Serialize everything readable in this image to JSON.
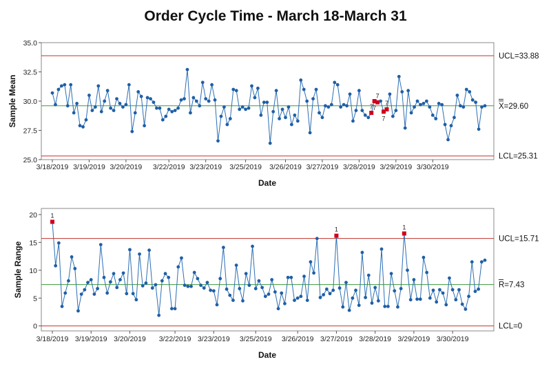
{
  "colors": {
    "line": "#2a6db4",
    "point": "#1f5fa6",
    "flag_point": "#d0021b",
    "limit": "#c0302a",
    "center": "#3a9a3a",
    "frame": "#888888"
  },
  "chart_data": [
    {
      "type": "line",
      "title": "Order Cycle Time - March 18-March 31",
      "xlabel": "Date",
      "ylabel": "Sample Mean",
      "ylim": [
        25.0,
        35.0
      ],
      "yticks": [
        "25.0",
        "27.5",
        "30.0",
        "32.5",
        "35.0"
      ],
      "ytick_values": [
        25.0,
        27.5,
        30.0,
        32.5,
        35.0
      ],
      "xtick_labels": [
        "3/18/2019",
        "3/19/2019",
        "3/20/2019",
        "3/22/2019",
        "3/23/2019",
        "3/25/2019",
        "3/26/2019",
        "3/27/2019",
        "3/28/2019",
        "3/29/2019",
        "3/30/2019"
      ],
      "xtick_index": [
        0,
        12,
        24,
        38,
        50,
        63,
        76,
        88,
        100,
        112,
        124
      ],
      "limits": [
        {
          "name": "UCL",
          "label": "UCL=33.88",
          "value": 33.88
        },
        {
          "name": "CL",
          "label": "X=29.60",
          "value": 29.6
        },
        {
          "name": "LCL",
          "label": "LCL=25.31",
          "value": 25.31
        }
      ],
      "values": [
        30.7,
        29.7,
        31.0,
        31.3,
        31.4,
        29.6,
        31.4,
        29.0,
        29.8,
        27.9,
        27.8,
        28.4,
        30.5,
        29.2,
        29.5,
        31.3,
        29.1,
        30.0,
        30.9,
        29.4,
        29.2,
        30.2,
        29.8,
        29.5,
        29.7,
        31.4,
        27.4,
        29.0,
        30.8,
        30.4,
        27.9,
        30.3,
        30.2,
        29.9,
        29.4,
        29.4,
        28.4,
        28.7,
        29.3,
        29.1,
        29.2,
        29.4,
        30.1,
        30.2,
        32.7,
        29.0,
        30.3,
        30.0,
        29.6,
        31.6,
        30.2,
        30.0,
        31.4,
        30.1,
        26.6,
        28.7,
        29.5,
        28.0,
        28.5,
        31.0,
        30.9,
        29.3,
        29.5,
        29.3,
        29.4,
        31.3,
        30.3,
        31.1,
        28.8,
        29.9,
        29.9,
        26.4,
        29.1,
        30.9,
        28.5,
        29.3,
        28.6,
        29.5,
        28.0,
        28.8,
        28.3,
        31.8,
        31.0,
        30.0,
        27.3,
        30.2,
        31.0,
        29.0,
        28.6,
        29.6,
        29.5,
        29.7,
        31.6,
        31.4,
        29.5,
        29.7,
        29.6,
        30.6,
        28.3,
        29.2,
        30.9,
        29.2,
        28.8,
        28.6,
        29.0,
        30.0,
        29.9,
        30.0,
        29.1,
        29.3,
        30.6,
        28.7,
        29.2,
        32.1,
        30.8,
        27.7,
        30.9,
        29.0,
        29.5,
        30.0,
        29.7,
        29.8,
        30.0,
        29.5,
        28.8,
        28.5,
        29.8,
        29.7,
        28.0,
        26.7,
        27.9,
        28.6,
        30.5,
        29.6,
        29.5,
        31.0,
        30.8,
        30.1,
        29.9,
        27.6,
        29.5,
        29.6
      ],
      "flagged": [
        {
          "index": 104,
          "label": "7"
        },
        {
          "index": 105,
          "label": "7"
        },
        {
          "index": 106,
          "label": "7"
        },
        {
          "index": 108,
          "label": "7"
        },
        {
          "index": 109,
          "label": "7"
        }
      ]
    },
    {
      "type": "line",
      "xlabel": "Date",
      "ylabel": "Sample Range",
      "ylim": [
        0,
        20
      ],
      "yticks": [
        "0",
        "5",
        "10",
        "15",
        "20"
      ],
      "ytick_values": [
        0,
        5,
        10,
        15,
        20
      ],
      "xtick_labels": [
        "3/18/2019",
        "3/19/2019",
        "3/20/2019",
        "3/22/2019",
        "3/23/2019",
        "3/25/2019",
        "3/26/2019",
        "3/27/2019",
        "3/28/2019",
        "3/29/2019",
        "3/30/2019"
      ],
      "xtick_index": [
        0,
        12,
        24,
        38,
        50,
        63,
        76,
        88,
        100,
        112,
        124
      ],
      "limits": [
        {
          "name": "UCL",
          "label": "UCL=15.71",
          "value": 15.71
        },
        {
          "name": "CL",
          "label": "R=7.43",
          "value": 7.43
        },
        {
          "name": "LCL",
          "label": "LCL=0",
          "value": 0
        }
      ],
      "values": [
        18.7,
        10.8,
        14.9,
        3.5,
        5.9,
        8.1,
        12.4,
        10.3,
        2.7,
        5.7,
        6.5,
        7.8,
        8.3,
        5.7,
        6.7,
        14.6,
        8.7,
        5.9,
        7.9,
        9.4,
        6.9,
        8.3,
        9.5,
        5.8,
        13.7,
        5.8,
        4.7,
        12.9,
        7.2,
        7.7,
        13.6,
        6.8,
        7.4,
        1.9,
        8.1,
        9.4,
        8.7,
        3.1,
        3.1,
        10.6,
        12.2,
        7.3,
        7.1,
        7.1,
        9.6,
        8.5,
        7.3,
        6.8,
        7.8,
        6.4,
        6.3,
        3.8,
        8.5,
        14.1,
        6.6,
        5.5,
        4.6,
        10.9,
        6.7,
        4.5,
        9.4,
        7.3,
        14.3,
        6.7,
        8.1,
        6.9,
        5.3,
        5.7,
        8.3,
        6.1,
        3.1,
        5.9,
        4.0,
        8.7,
        8.7,
        4.6,
        5.0,
        5.3,
        8.9,
        4.6,
        11.5,
        9.5,
        15.7,
        5.1,
        5.6,
        6.6,
        5.8,
        6.4,
        16.2,
        6.8,
        3.4,
        7.8,
        2.8,
        5.0,
        6.4,
        3.7,
        13.2,
        5.1,
        9.1,
        4.1,
        6.9,
        4.5,
        13.8,
        3.5,
        3.5,
        9.4,
        6.3,
        3.4,
        6.7,
        16.6,
        10.0,
        4.7,
        8.3,
        4.8,
        4.8,
        12.3,
        9.6,
        5.0,
        6.4,
        4.3,
        6.5,
        5.9,
        3.8,
        8.6,
        6.5,
        4.7,
        6.5,
        3.9,
        3.0,
        5.3,
        11.5,
        6.2,
        6.6,
        11.5,
        11.8
      ],
      "flagged": [
        {
          "index": 0,
          "label": "1"
        },
        {
          "index": 88,
          "label": "1"
        },
        {
          "index": 109,
          "label": "1"
        }
      ]
    }
  ]
}
